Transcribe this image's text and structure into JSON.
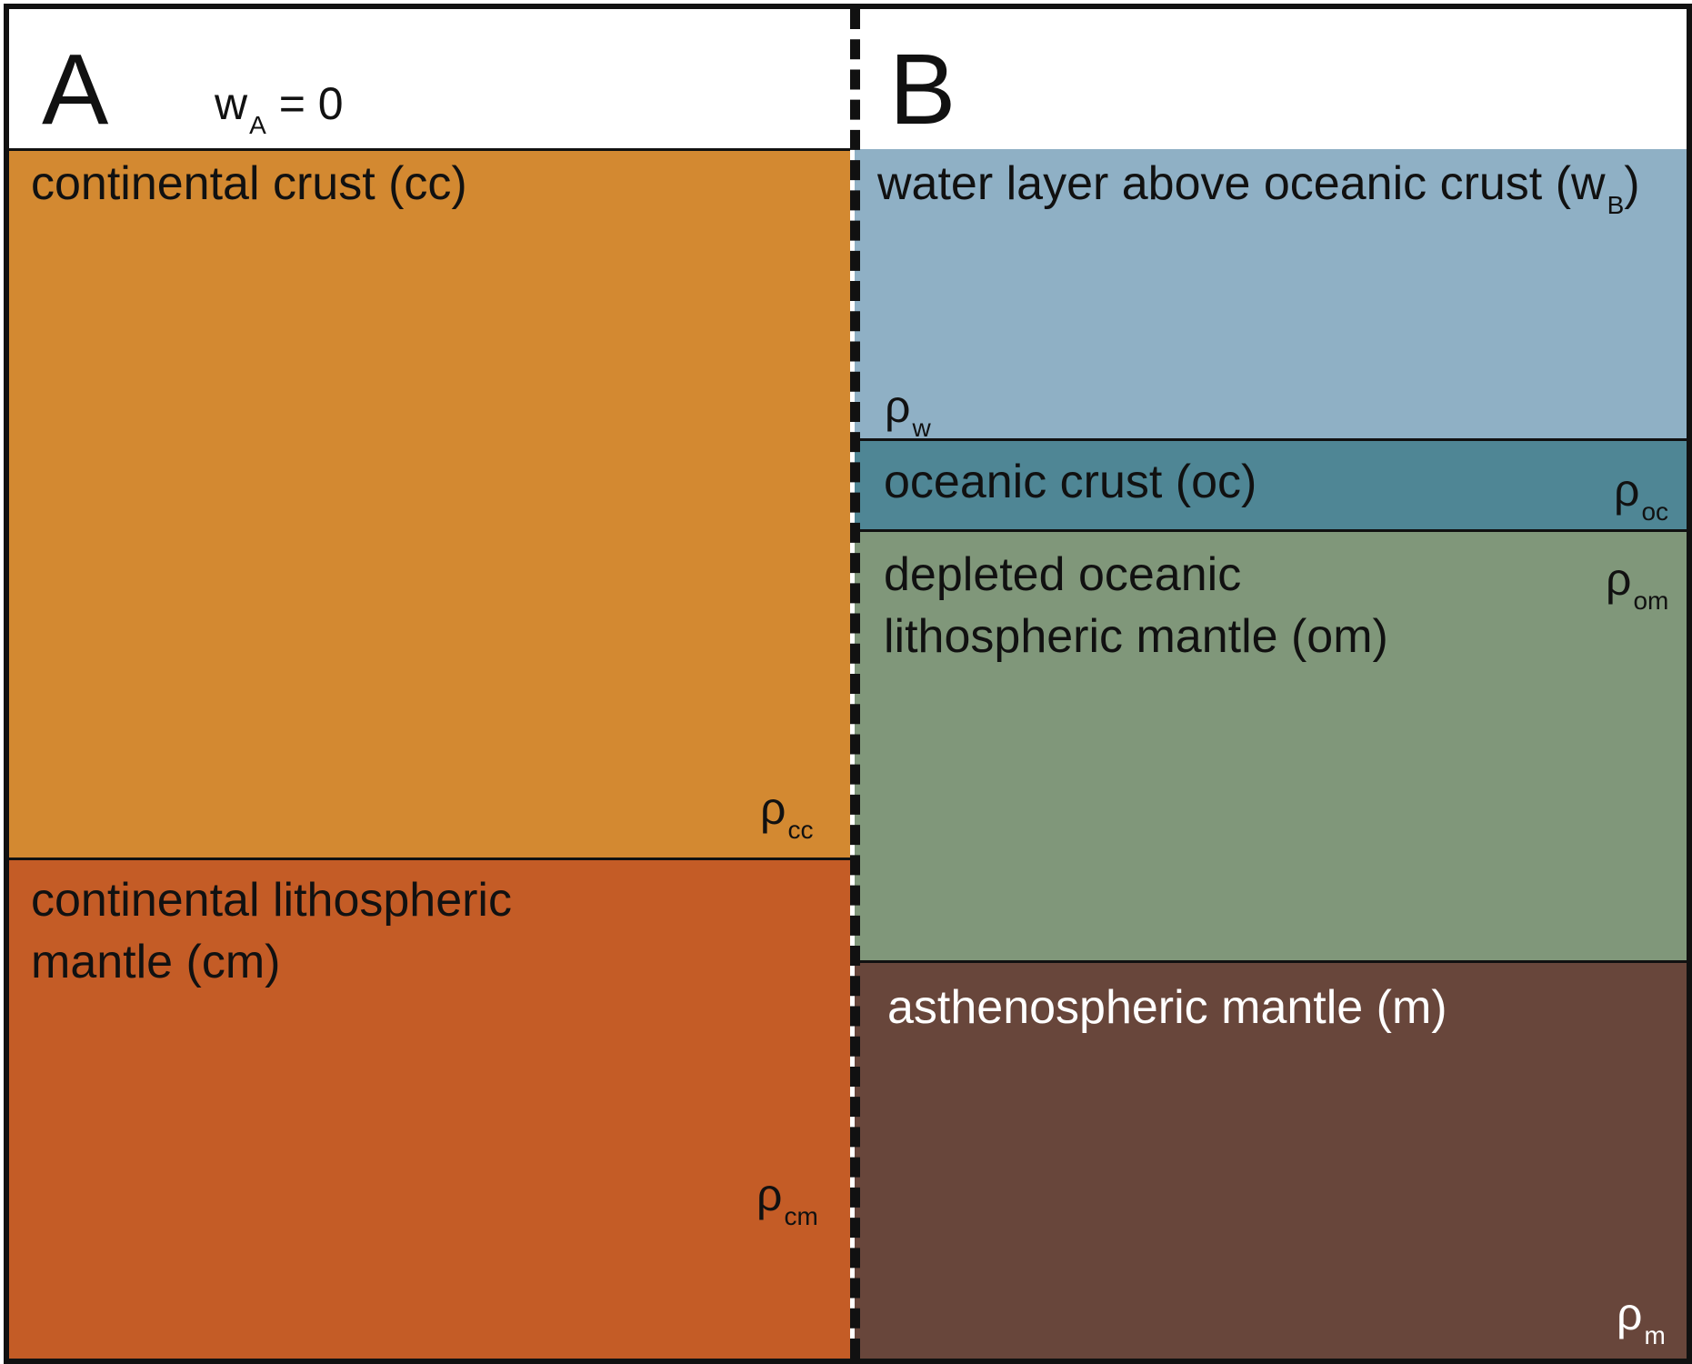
{
  "panel_a": {
    "letter": "A",
    "water_label": "w",
    "water_sub": "A",
    "water_value": "= 0",
    "layers": [
      {
        "label": "continental crust (cc)",
        "rho": "ρ",
        "rho_sub": "cc",
        "color": "#D38931"
      },
      {
        "label_line1": "continental lithospheric",
        "label_line2": "mantle (cm)",
        "rho": "ρ",
        "rho_sub": "cm",
        "color": "#C45C26"
      }
    ]
  },
  "panel_b": {
    "letter": "B",
    "layers": [
      {
        "label": "water layer above oceanic crust (w",
        "label_sub": "B",
        "label_end": ")",
        "rho": "ρ",
        "rho_sub": "w",
        "color": "#8FB0C5"
      },
      {
        "label": "oceanic crust (oc)",
        "rho": "ρ",
        "rho_sub": "oc",
        "color": "#4F8695"
      },
      {
        "label_line1": "depleted oceanic",
        "label_line2": "lithospheric mantle (om)",
        "rho": "ρ",
        "rho_sub": "om",
        "color": "#80977A"
      },
      {
        "label": "asthenospheric mantle (m)",
        "rho": "ρ",
        "rho_sub": "m",
        "color": "#68463B"
      }
    ]
  }
}
